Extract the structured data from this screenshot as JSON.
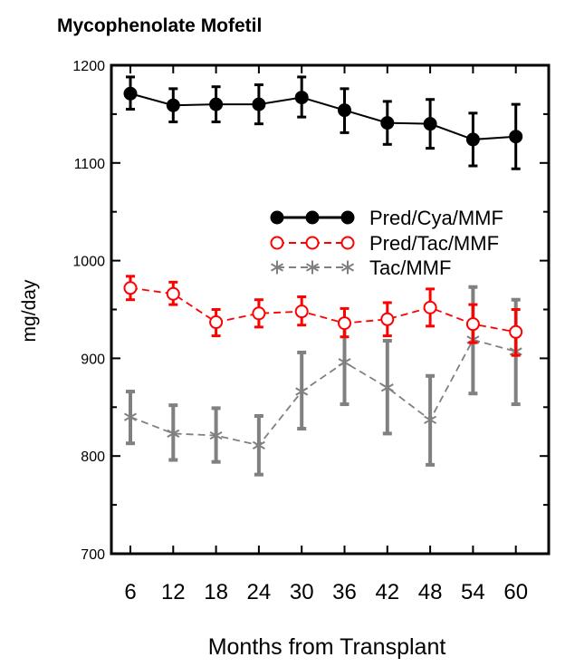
{
  "chart_data": {
    "type": "line",
    "title": "Mycophenolate Mofetil",
    "xlabel": "Months from Transplant",
    "ylabel": "mg/day",
    "x": [
      6,
      12,
      18,
      24,
      30,
      36,
      42,
      48,
      54,
      60
    ],
    "x_tick_labels": [
      "6",
      "12",
      "18",
      "24",
      "30",
      "36",
      "42",
      "48",
      "54",
      "60"
    ],
    "ylim": [
      700,
      1200
    ],
    "y_ticks": [
      700,
      800,
      900,
      1000,
      1100,
      1200
    ],
    "y_tick_labels": [
      "700",
      "800",
      "900",
      "1000",
      "1100",
      "1200"
    ],
    "grid": false,
    "legend_position": "upper-right",
    "series": [
      {
        "name": "Pred/Cya/MMF",
        "color": "#000000",
        "marker": "filled-circle",
        "line": "solid",
        "values": [
          1171,
          1159,
          1160,
          1160,
          1167,
          1154,
          1141,
          1140,
          1124,
          1127
        ],
        "error_low": [
          1155,
          1142,
          1142,
          1140,
          1147,
          1131,
          1119,
          1115,
          1097,
          1094
        ],
        "error_high": [
          1188,
          1176,
          1178,
          1180,
          1188,
          1176,
          1163,
          1165,
          1151,
          1160
        ]
      },
      {
        "name": "Pred/Tac/MMF",
        "color": "#ff0000",
        "marker": "open-circle",
        "line": "dashed",
        "values": [
          972,
          966,
          937,
          946,
          948,
          936,
          940,
          952,
          935,
          927
        ],
        "error_low": [
          960,
          955,
          923,
          932,
          934,
          922,
          923,
          933,
          916,
          903
        ],
        "error_high": [
          984,
          978,
          950,
          960,
          963,
          951,
          957,
          971,
          955,
          950
        ]
      },
      {
        "name": "Tac/MMF",
        "color": "#808080",
        "marker": "asterisk",
        "line": "dashed",
        "values": [
          840,
          823,
          821,
          811,
          866,
          896,
          870,
          837,
          919,
          907
        ],
        "error_low": [
          813,
          796,
          794,
          781,
          828,
          853,
          823,
          791,
          864,
          853
        ],
        "error_high": [
          866,
          852,
          849,
          841,
          906,
          938,
          918,
          882,
          973,
          960
        ]
      }
    ]
  }
}
